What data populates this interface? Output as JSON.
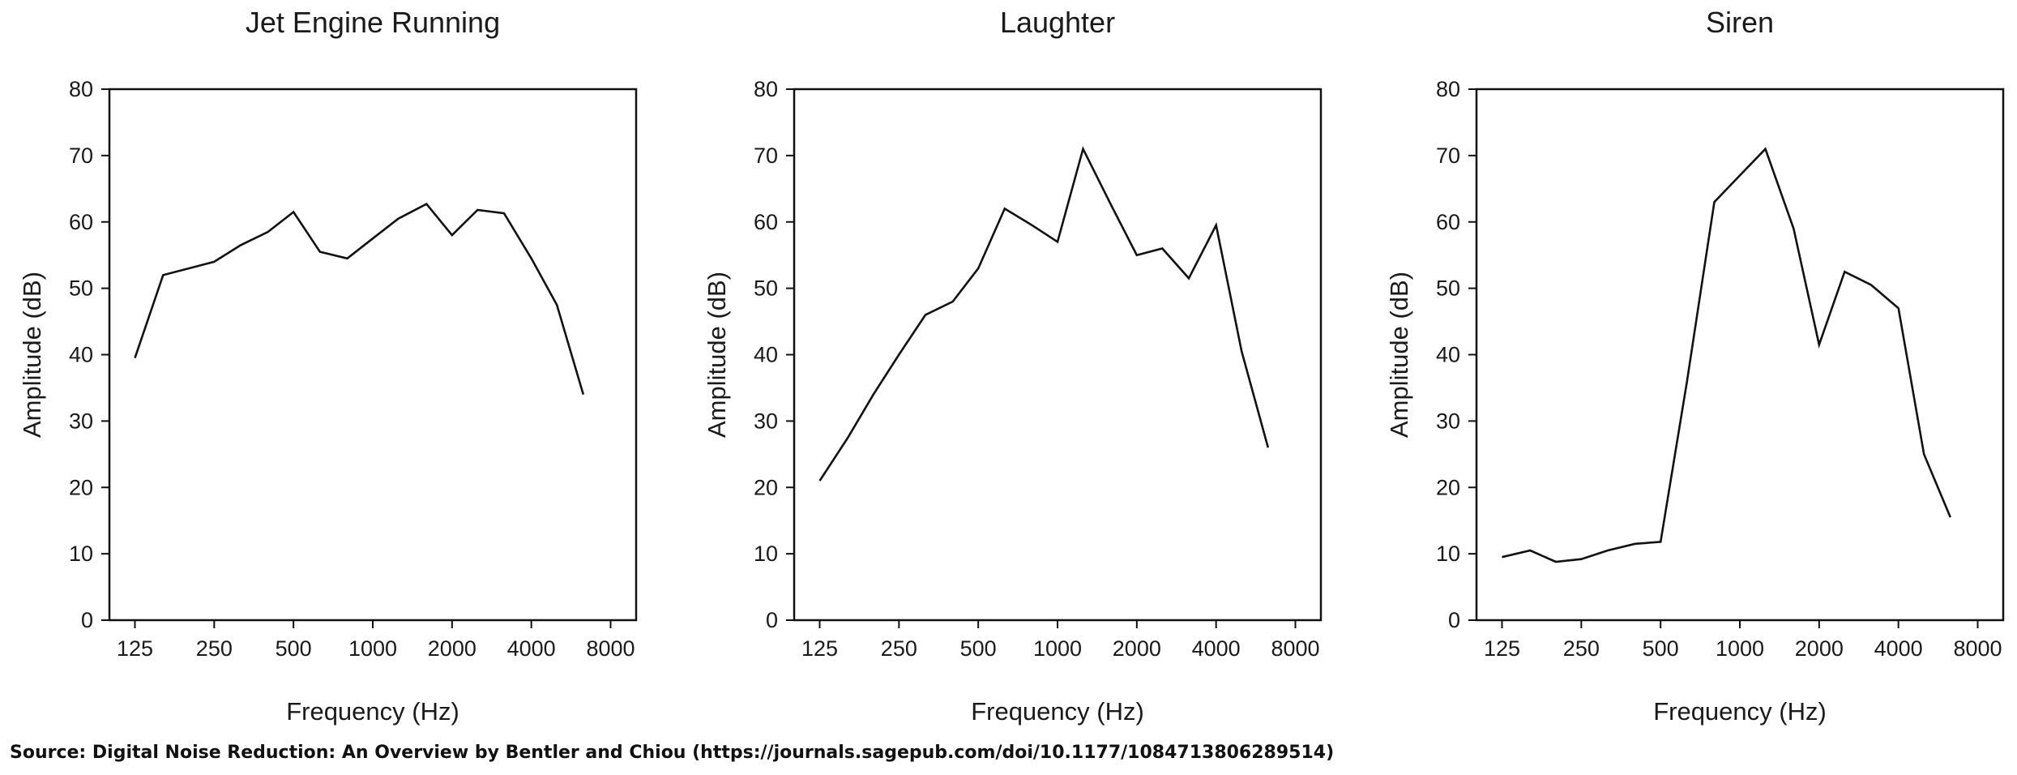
{
  "source_note": "Source: Digital Noise Reduction: An Overview by Bentler and Chiou (https://journals.sagepub.com/doi/10.1177/1084713806289514)",
  "chart_data": [
    {
      "type": "line",
      "title": "Jet Engine Running",
      "xlabel": "Frequency (Hz)",
      "ylabel": "Amplitude (dB)",
      "x_scale": "log2",
      "xlim": [
        100,
        10000
      ],
      "ylim": [
        0,
        80
      ],
      "xticks": [
        125,
        250,
        500,
        1000,
        2000,
        4000,
        8000
      ],
      "yticks": [
        0,
        10,
        20,
        30,
        40,
        50,
        60,
        70,
        80
      ],
      "grid": false,
      "series": [
        {
          "x": [
            125,
            160,
            200,
            250,
            315,
            400,
            500,
            630,
            800,
            1000,
            1250,
            1600,
            2000,
            2500,
            3150,
            4000,
            5000,
            6300
          ],
          "y": [
            39.5,
            52,
            53,
            54,
            56.5,
            58.5,
            61.5,
            55.5,
            54.5,
            57.5,
            60.5,
            62.7,
            58,
            61.8,
            61.3,
            54.5,
            47.5,
            34
          ]
        }
      ]
    },
    {
      "type": "line",
      "title": "Laughter",
      "xlabel": "Frequency (Hz)",
      "ylabel": "Amplitude (dB)",
      "x_scale": "log2",
      "xlim": [
        100,
        10000
      ],
      "ylim": [
        0,
        80
      ],
      "xticks": [
        125,
        250,
        500,
        1000,
        2000,
        4000,
        8000
      ],
      "yticks": [
        0,
        10,
        20,
        30,
        40,
        50,
        60,
        70,
        80
      ],
      "grid": false,
      "series": [
        {
          "x": [
            125,
            160,
            200,
            250,
            315,
            400,
            500,
            630,
            800,
            1000,
            1250,
            1600,
            2000,
            2500,
            3150,
            4000,
            5000,
            6300
          ],
          "y": [
            21,
            27.5,
            34,
            40,
            46,
            48,
            53,
            62,
            59.5,
            57,
            71,
            62.5,
            55,
            56,
            51.5,
            59.5,
            40.5,
            26
          ]
        }
      ]
    },
    {
      "type": "line",
      "title": "Siren",
      "xlabel": "Frequency (Hz)",
      "ylabel": "Amplitude (dB)",
      "x_scale": "log2",
      "xlim": [
        100,
        10000
      ],
      "ylim": [
        0,
        80
      ],
      "xticks": [
        125,
        250,
        500,
        1000,
        2000,
        4000,
        8000
      ],
      "yticks": [
        0,
        10,
        20,
        30,
        40,
        50,
        60,
        70,
        80
      ],
      "grid": false,
      "series": [
        {
          "x": [
            125,
            160,
            200,
            250,
            315,
            400,
            500,
            630,
            800,
            1000,
            1250,
            1600,
            2000,
            2500,
            3150,
            4000,
            5000,
            6300
          ],
          "y": [
            9.5,
            10.5,
            8.8,
            9.2,
            10.5,
            11.5,
            11.8,
            36,
            63,
            67,
            71,
            59,
            41.5,
            52.5,
            50.5,
            47,
            25,
            15.5
          ]
        }
      ]
    }
  ]
}
